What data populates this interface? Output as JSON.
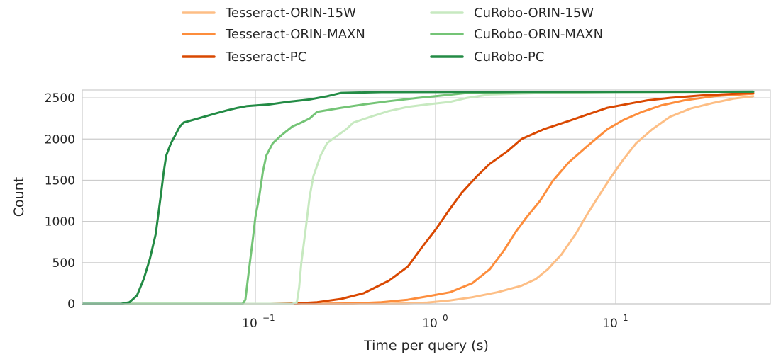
{
  "chart_data": {
    "type": "line",
    "xlabel": "Time per query (s)",
    "ylabel": "Count",
    "xscale": "log",
    "xlim": [
      0.01,
      100
    ],
    "ylim": [
      0,
      2600
    ],
    "x_ticks": [
      {
        "value": 0.1,
        "base": "10",
        "exp": "−1"
      },
      {
        "value": 1,
        "base": "10",
        "exp": "0"
      },
      {
        "value": 10,
        "base": "10",
        "exp": "1"
      }
    ],
    "y_ticks": [
      0,
      500,
      1000,
      1500,
      2000,
      2500
    ],
    "grid": true,
    "legend_position": "top-center",
    "series": [
      {
        "name": "Tesseract-ORIN-15W",
        "color": "#fdbe85",
        "points": [
          [
            0.011,
            0
          ],
          [
            0.5,
            0
          ],
          [
            0.7,
            5
          ],
          [
            0.9,
            15
          ],
          [
            1.2,
            40
          ],
          [
            1.6,
            80
          ],
          [
            2.2,
            140
          ],
          [
            3.0,
            220
          ],
          [
            3.6,
            300
          ],
          [
            4.2,
            420
          ],
          [
            5.0,
            600
          ],
          [
            6.0,
            850
          ],
          [
            7.0,
            1100
          ],
          [
            8.0,
            1300
          ],
          [
            9.5,
            1550
          ],
          [
            11,
            1750
          ],
          [
            13,
            1950
          ],
          [
            16,
            2120
          ],
          [
            20,
            2270
          ],
          [
            26,
            2370
          ],
          [
            35,
            2440
          ],
          [
            45,
            2490
          ],
          [
            58,
            2520
          ]
        ]
      },
      {
        "name": "Tesseract-ORIN-MAXN",
        "color": "#fd8d3c",
        "points": [
          [
            0.011,
            0
          ],
          [
            0.2,
            0
          ],
          [
            0.35,
            5
          ],
          [
            0.5,
            20
          ],
          [
            0.7,
            50
          ],
          [
            0.9,
            90
          ],
          [
            1.2,
            140
          ],
          [
            1.6,
            250
          ],
          [
            2.0,
            420
          ],
          [
            2.4,
            650
          ],
          [
            2.8,
            880
          ],
          [
            3.2,
            1050
          ],
          [
            3.8,
            1250
          ],
          [
            4.5,
            1500
          ],
          [
            5.5,
            1720
          ],
          [
            7.0,
            1920
          ],
          [
            9.0,
            2120
          ],
          [
            11,
            2230
          ],
          [
            14,
            2330
          ],
          [
            18,
            2410
          ],
          [
            24,
            2470
          ],
          [
            35,
            2520
          ],
          [
            58,
            2550
          ]
        ]
      },
      {
        "name": "Tesseract-PC",
        "color": "#d94801",
        "points": [
          [
            0.011,
            0
          ],
          [
            0.12,
            0
          ],
          [
            0.17,
            5
          ],
          [
            0.22,
            20
          ],
          [
            0.3,
            60
          ],
          [
            0.4,
            130
          ],
          [
            0.55,
            280
          ],
          [
            0.7,
            450
          ],
          [
            0.85,
            700
          ],
          [
            1.0,
            900
          ],
          [
            1.2,
            1150
          ],
          [
            1.4,
            1350
          ],
          [
            1.7,
            1550
          ],
          [
            2.0,
            1700
          ],
          [
            2.5,
            1850
          ],
          [
            3.0,
            2000
          ],
          [
            4.0,
            2120
          ],
          [
            5.5,
            2220
          ],
          [
            7.0,
            2300
          ],
          [
            9.0,
            2380
          ],
          [
            12,
            2430
          ],
          [
            15,
            2470
          ],
          [
            20,
            2500
          ],
          [
            30,
            2530
          ],
          [
            58,
            2560
          ]
        ]
      },
      {
        "name": "CuRobo-ORIN-15W",
        "color": "#c7e9c0",
        "points": [
          [
            0.011,
            0
          ],
          [
            0.16,
            0
          ],
          [
            0.17,
            20
          ],
          [
            0.175,
            200
          ],
          [
            0.18,
            500
          ],
          [
            0.19,
            900
          ],
          [
            0.2,
            1300
          ],
          [
            0.21,
            1550
          ],
          [
            0.23,
            1800
          ],
          [
            0.25,
            1950
          ],
          [
            0.28,
            2030
          ],
          [
            0.32,
            2120
          ],
          [
            0.35,
            2200
          ],
          [
            0.45,
            2280
          ],
          [
            0.55,
            2340
          ],
          [
            0.7,
            2390
          ],
          [
            0.9,
            2420
          ],
          [
            1.2,
            2450
          ],
          [
            1.5,
            2500
          ],
          [
            2.0,
            2540
          ],
          [
            4.0,
            2560
          ],
          [
            10,
            2570
          ],
          [
            58,
            2575
          ]
        ]
      },
      {
        "name": "CuRobo-ORIN-MAXN",
        "color": "#74c476",
        "points": [
          [
            0.011,
            0
          ],
          [
            0.085,
            0
          ],
          [
            0.088,
            50
          ],
          [
            0.092,
            400
          ],
          [
            0.097,
            800
          ],
          [
            0.1,
            1050
          ],
          [
            0.105,
            1300
          ],
          [
            0.11,
            1600
          ],
          [
            0.115,
            1800
          ],
          [
            0.125,
            1950
          ],
          [
            0.14,
            2050
          ],
          [
            0.16,
            2150
          ],
          [
            0.18,
            2200
          ],
          [
            0.2,
            2250
          ],
          [
            0.22,
            2330
          ],
          [
            0.3,
            2380
          ],
          [
            0.4,
            2420
          ],
          [
            0.55,
            2460
          ],
          [
            0.8,
            2500
          ],
          [
            1.0,
            2520
          ],
          [
            1.5,
            2560
          ],
          [
            3.0,
            2570
          ],
          [
            58,
            2575
          ]
        ]
      },
      {
        "name": "CuRobo-PC",
        "color": "#238b45",
        "points": [
          [
            0.011,
            0
          ],
          [
            0.018,
            0
          ],
          [
            0.02,
            20
          ],
          [
            0.022,
            100
          ],
          [
            0.024,
            300
          ],
          [
            0.026,
            550
          ],
          [
            0.028,
            850
          ],
          [
            0.029,
            1100
          ],
          [
            0.03,
            1350
          ],
          [
            0.031,
            1600
          ],
          [
            0.032,
            1800
          ],
          [
            0.034,
            1950
          ],
          [
            0.036,
            2050
          ],
          [
            0.038,
            2150
          ],
          [
            0.04,
            2200
          ],
          [
            0.05,
            2260
          ],
          [
            0.06,
            2310
          ],
          [
            0.07,
            2350
          ],
          [
            0.08,
            2380
          ],
          [
            0.09,
            2400
          ],
          [
            0.12,
            2420
          ],
          [
            0.15,
            2450
          ],
          [
            0.2,
            2480
          ],
          [
            0.25,
            2520
          ],
          [
            0.3,
            2560
          ],
          [
            0.5,
            2570
          ],
          [
            58,
            2575
          ]
        ]
      }
    ]
  }
}
